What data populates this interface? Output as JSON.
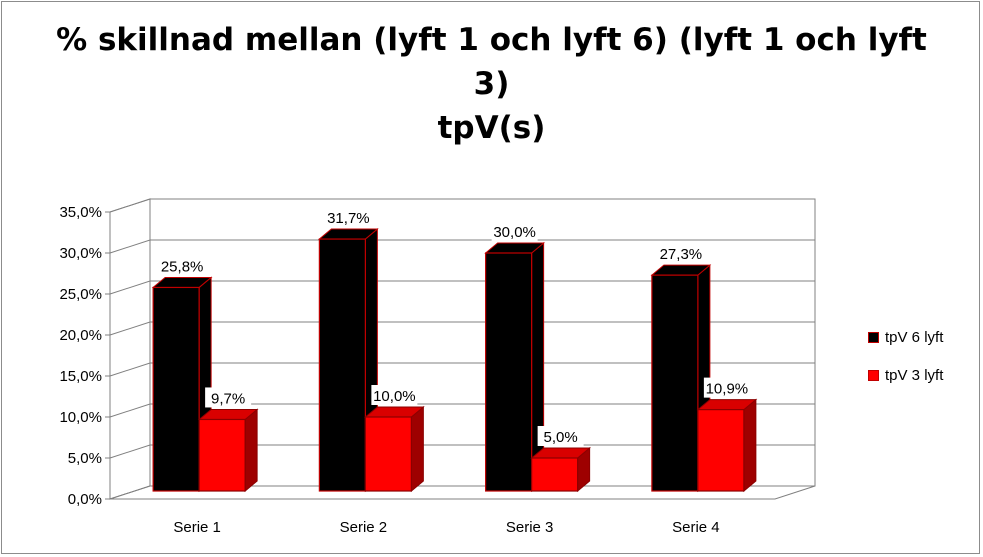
{
  "chart_data": {
    "type": "bar",
    "title_lines": [
      "% skillnad mellan (lyft 1 och lyft 6) (lyft 1 och lyft",
      "3)",
      "tpV(s)"
    ],
    "categories": [
      "Serie 1",
      "Serie 2",
      "Serie 3",
      "Serie 4"
    ],
    "series": [
      {
        "name": "tpV 6 lyft",
        "values": [
          25.8,
          31.7,
          30.0,
          27.3
        ],
        "labels": [
          "25,8%",
          "31,7%",
          "30,0%",
          "27,3%"
        ],
        "color": "#000000"
      },
      {
        "name": "tpV 3 lyft",
        "values": [
          9.7,
          10.0,
          5.0,
          10.9
        ],
        "labels": [
          "9,7%",
          "10,0%",
          "5,0%",
          "10,9%"
        ],
        "color": "#ff0000"
      }
    ],
    "y_ticks": [
      "0,0%",
      "5,0%",
      "10,0%",
      "15,0%",
      "20,0%",
      "25,0%",
      "30,0%",
      "35,0%"
    ],
    "ylim": [
      0,
      35
    ],
    "grid": true,
    "legend_position": "right",
    "three_d": true
  }
}
